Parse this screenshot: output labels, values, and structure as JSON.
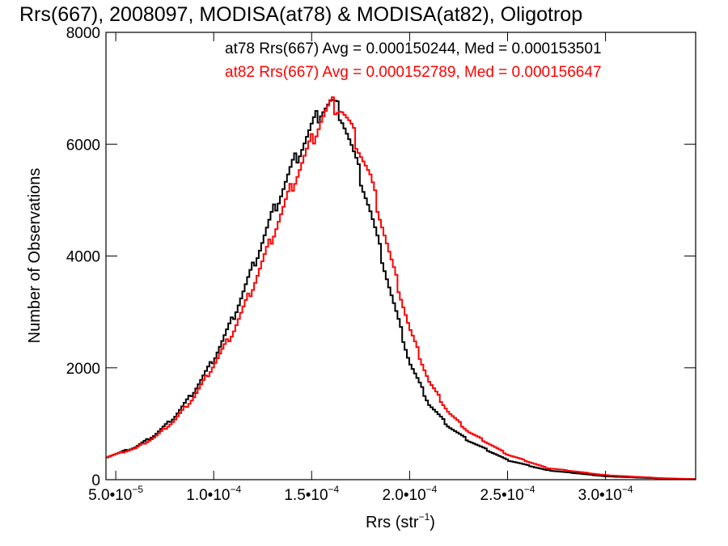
{
  "chart_data": {
    "type": "histogram",
    "title": "Rrs(667), 2008097, MODISA(at78) & MODISA(at82), Oligotrop",
    "xlabel_base": "Rrs (str",
    "xlabel_exp": "−1",
    "xlabel_close": ")",
    "ylabel": "Number of Observations",
    "xlim": [
      4.5e-05,
      0.000346
    ],
    "ylim": [
      0,
      8000
    ],
    "x_ticks": [
      {
        "value": 5e-05,
        "mant": "5.0•10",
        "exp": "−5"
      },
      {
        "value": 0.0001,
        "mant": "1.0•10",
        "exp": "−4"
      },
      {
        "value": 0.00015,
        "mant": "1.5•10",
        "exp": "−4"
      },
      {
        "value": 0.0002,
        "mant": "2.0•10",
        "exp": "−4"
      },
      {
        "value": 0.00025,
        "mant": "2.5•10",
        "exp": "−4"
      },
      {
        "value": 0.0003,
        "mant": "3.0•10",
        "exp": "−4"
      }
    ],
    "y_ticks": [
      {
        "value": 0,
        "label": "0"
      },
      {
        "value": 2000,
        "label": "2000"
      },
      {
        "value": 4000,
        "label": "4000"
      },
      {
        "value": 6000,
        "label": "6000"
      },
      {
        "value": 8000,
        "label": "8000"
      }
    ],
    "annotations": [
      {
        "text": "at78 Rrs(667) Avg = 0.000150244, Med = 0.000153501",
        "color": "#000000"
      },
      {
        "text": "at82 Rrs(667) Avg = 0.000152789, Med = 0.000156647",
        "color": "#ff0000"
      }
    ],
    "bin_width": 1.2e-06,
    "series": [
      {
        "color": "#000000",
        "x": [
          4.5e-05,
          6e-05,
          7e-05,
          8e-05,
          9e-05,
          0.0001,
          0.00011,
          0.00012,
          0.00013,
          0.00014,
          0.00015,
          0.000155,
          0.00016,
          0.000165,
          0.00017,
          0.00018,
          0.00019,
          0.0002,
          0.00021,
          0.00022,
          0.00023,
          0.00025,
          0.00027,
          0.0003,
          0.00033,
          0.000346
        ],
        "y": [
          400,
          580,
          800,
          1120,
          1580,
          2150,
          2900,
          3800,
          4750,
          5600,
          6300,
          6620,
          6750,
          6550,
          6000,
          4800,
          3400,
          2100,
          1350,
          950,
          700,
          350,
          170,
          60,
          20,
          10
        ]
      },
      {
        "color": "#ff0000",
        "x": [
          4.5e-05,
          6e-05,
          7e-05,
          8e-05,
          9e-05,
          0.0001,
          0.00011,
          0.00012,
          0.00013,
          0.00014,
          0.00015,
          0.000155,
          0.00016,
          0.000165,
          0.00017,
          0.00018,
          0.00019,
          0.0002,
          0.00021,
          0.00022,
          0.00023,
          0.00025,
          0.00027,
          0.0003,
          0.00033,
          0.000346
        ],
        "y": [
          400,
          560,
          760,
          1060,
          1480,
          2050,
          2650,
          3450,
          4350,
          5250,
          6050,
          6450,
          6700,
          6650,
          6300,
          5400,
          4000,
          2700,
          1750,
          1200,
          860,
          450,
          210,
          80,
          25,
          10
        ]
      }
    ]
  }
}
